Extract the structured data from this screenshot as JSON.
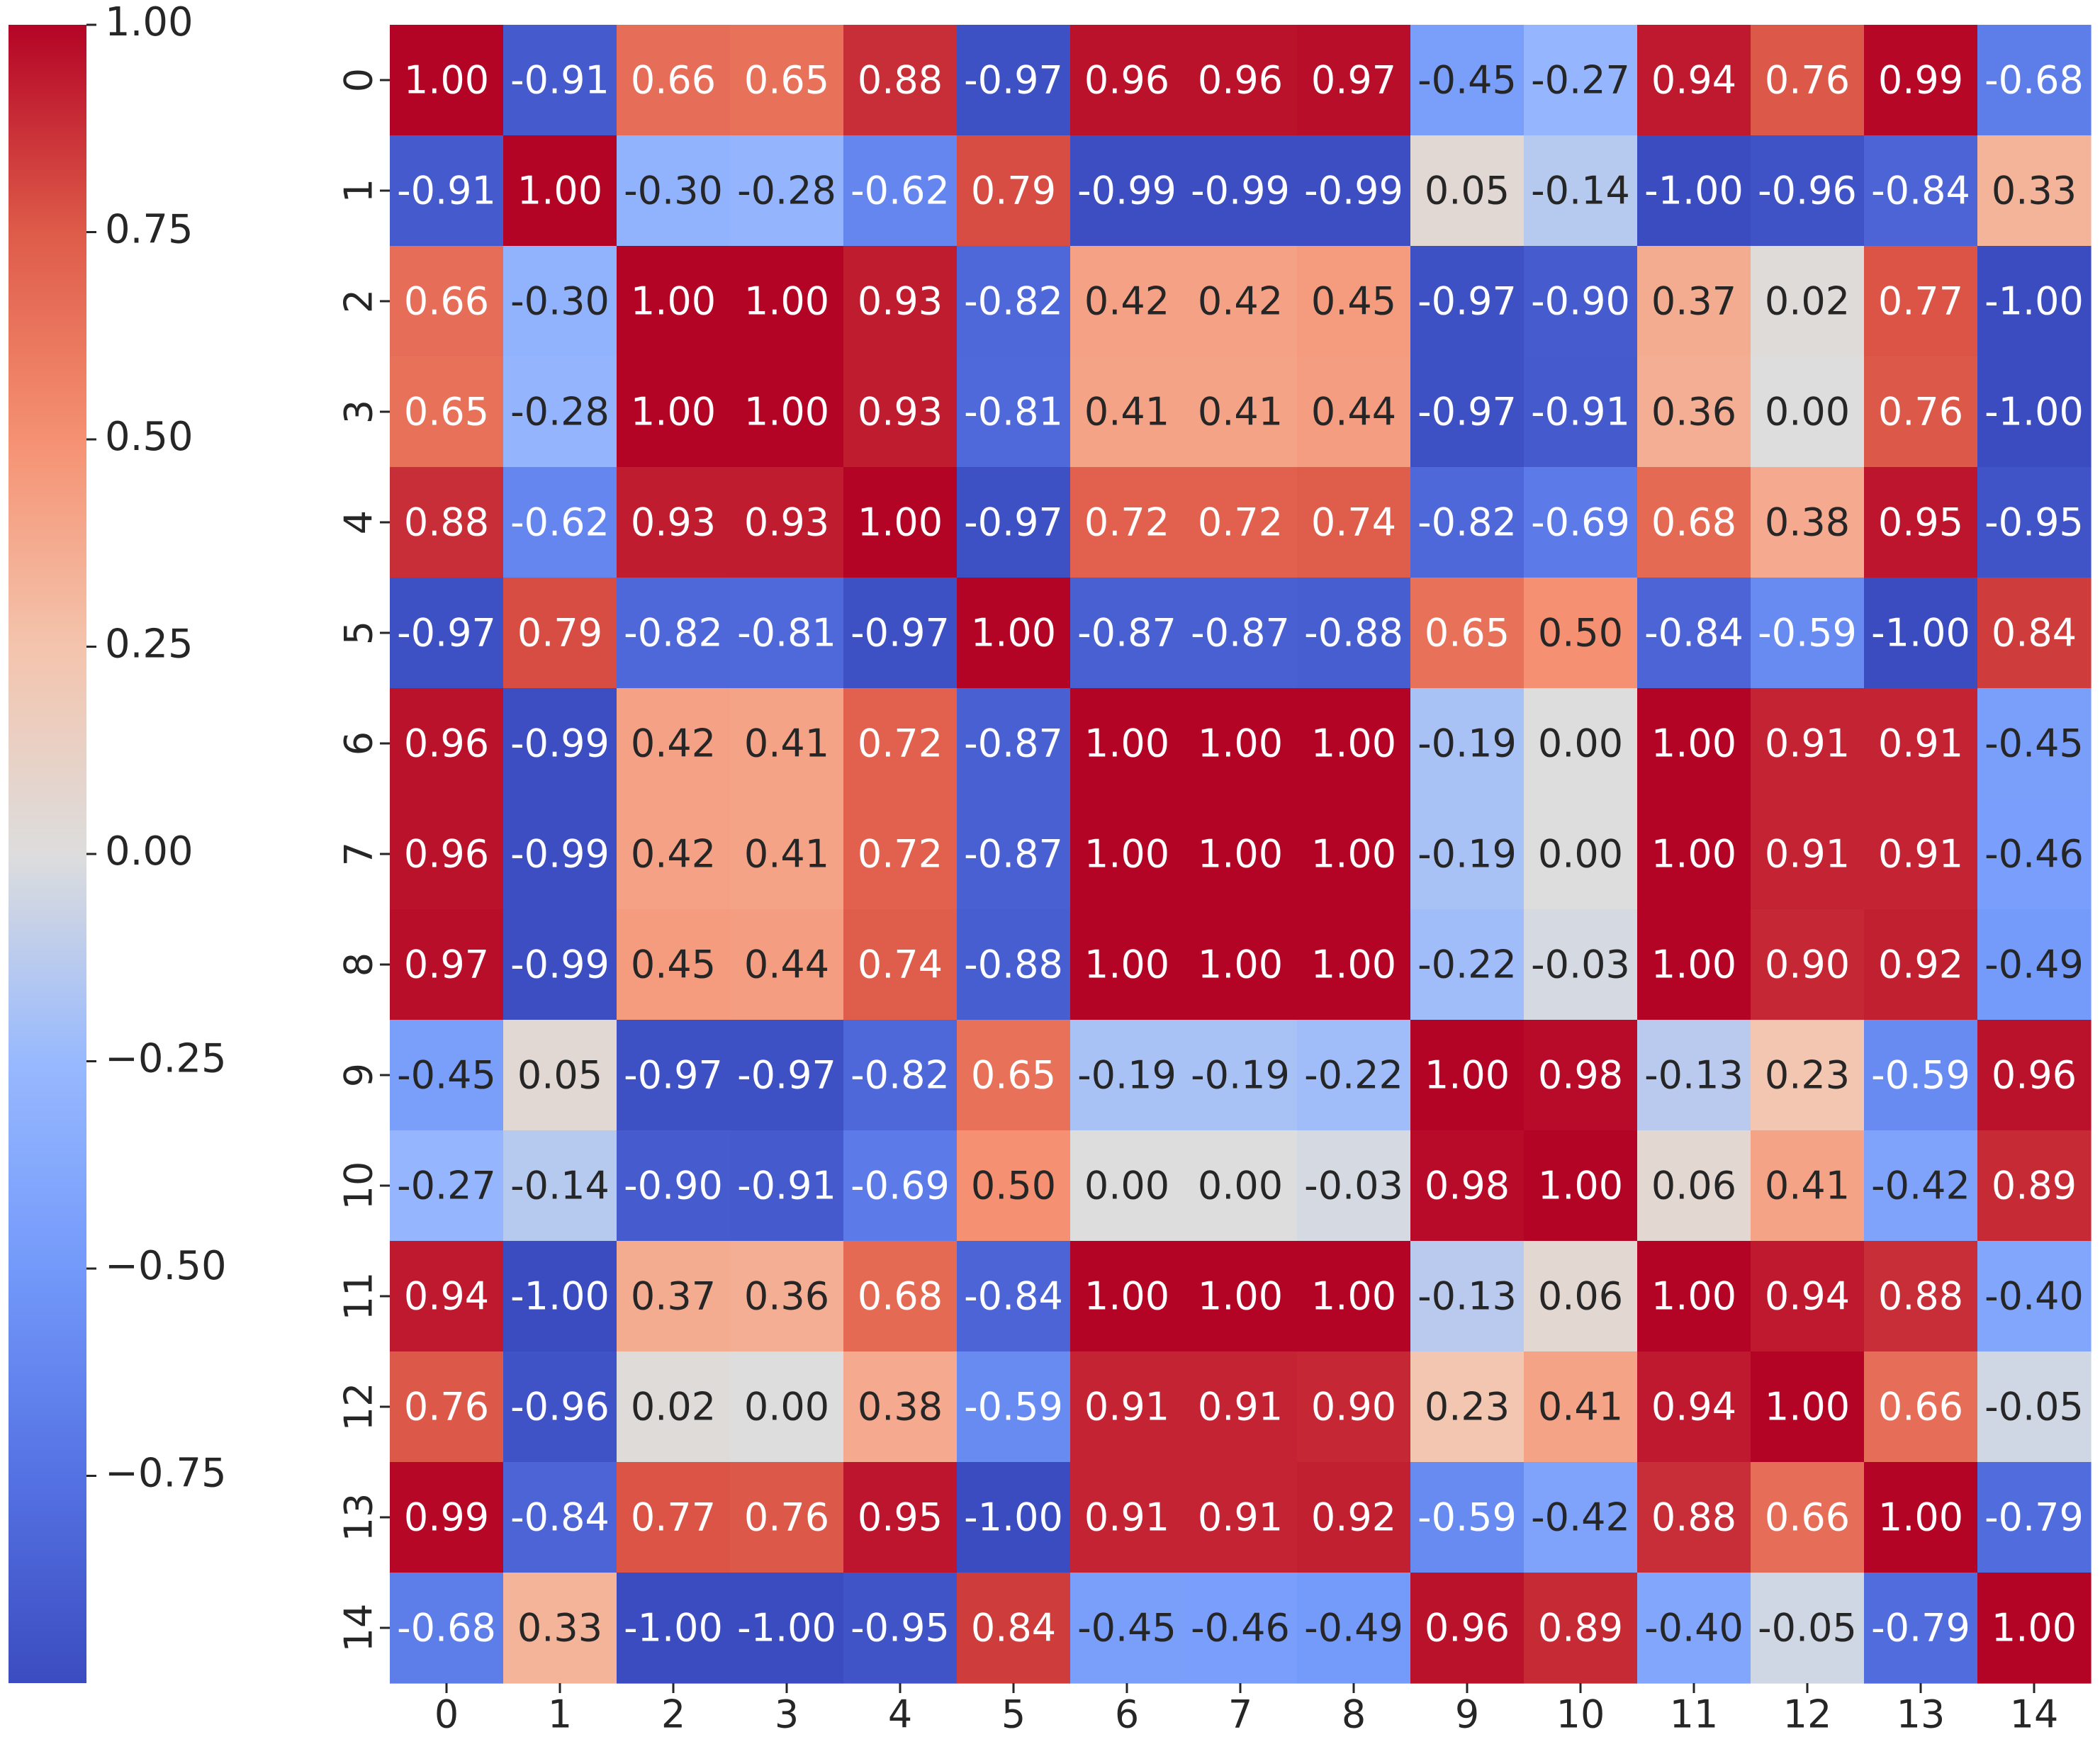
{
  "chart_data": {
    "type": "heatmap",
    "title": "",
    "xlabel": "",
    "ylabel": "",
    "colormap": "coolwarm",
    "vmin": -1.0,
    "vmax": 1.0,
    "x_ticks": [
      "0",
      "1",
      "2",
      "3",
      "4",
      "5",
      "6",
      "7",
      "8",
      "9",
      "10",
      "11",
      "12",
      "13",
      "14"
    ],
    "y_ticks": [
      "0",
      "1",
      "2",
      "3",
      "4",
      "5",
      "6",
      "7",
      "8",
      "9",
      "10",
      "11",
      "12",
      "13",
      "14"
    ],
    "values": [
      [
        1.0,
        -0.91,
        0.66,
        0.65,
        0.88,
        -0.97,
        0.96,
        0.96,
        0.97,
        -0.45,
        -0.27,
        0.94,
        0.76,
        0.99,
        -0.68
      ],
      [
        -0.91,
        1.0,
        -0.3,
        -0.28,
        -0.62,
        0.79,
        -0.99,
        -0.99,
        -0.99,
        0.05,
        -0.14,
        -1.0,
        -0.96,
        -0.84,
        0.33
      ],
      [
        0.66,
        -0.3,
        1.0,
        1.0,
        0.93,
        -0.82,
        0.42,
        0.42,
        0.45,
        -0.97,
        -0.9,
        0.37,
        0.02,
        0.77,
        -1.0
      ],
      [
        0.65,
        -0.28,
        1.0,
        1.0,
        0.93,
        -0.81,
        0.41,
        0.41,
        0.44,
        -0.97,
        -0.91,
        0.36,
        0.0,
        0.76,
        -1.0
      ],
      [
        0.88,
        -0.62,
        0.93,
        0.93,
        1.0,
        -0.97,
        0.72,
        0.72,
        0.74,
        -0.82,
        -0.69,
        0.68,
        0.38,
        0.95,
        -0.95
      ],
      [
        -0.97,
        0.79,
        -0.82,
        -0.81,
        -0.97,
        1.0,
        -0.87,
        -0.87,
        -0.88,
        0.65,
        0.5,
        -0.84,
        -0.59,
        -1.0,
        0.84
      ],
      [
        0.96,
        -0.99,
        0.42,
        0.41,
        0.72,
        -0.87,
        1.0,
        1.0,
        1.0,
        -0.19,
        0.0,
        1.0,
        0.91,
        0.91,
        -0.45
      ],
      [
        0.96,
        -0.99,
        0.42,
        0.41,
        0.72,
        -0.87,
        1.0,
        1.0,
        1.0,
        -0.19,
        0.0,
        1.0,
        0.91,
        0.91,
        -0.46
      ],
      [
        0.97,
        -0.99,
        0.45,
        0.44,
        0.74,
        -0.88,
        1.0,
        1.0,
        1.0,
        -0.22,
        -0.03,
        1.0,
        0.9,
        0.92,
        -0.49
      ],
      [
        -0.45,
        0.05,
        -0.97,
        -0.97,
        -0.82,
        0.65,
        -0.19,
        -0.19,
        -0.22,
        1.0,
        0.98,
        -0.13,
        0.23,
        -0.59,
        0.96
      ],
      [
        -0.27,
        -0.14,
        -0.9,
        -0.91,
        -0.69,
        0.5,
        0.0,
        0.0,
        -0.03,
        0.98,
        1.0,
        0.06,
        0.41,
        -0.42,
        0.89
      ],
      [
        0.94,
        -1.0,
        0.37,
        0.36,
        0.68,
        -0.84,
        1.0,
        1.0,
        1.0,
        -0.13,
        0.06,
        1.0,
        0.94,
        0.88,
        -0.4
      ],
      [
        0.76,
        -0.96,
        0.02,
        0.0,
        0.38,
        -0.59,
        0.91,
        0.91,
        0.9,
        0.23,
        0.41,
        0.94,
        1.0,
        0.66,
        -0.05
      ],
      [
        0.99,
        -0.84,
        0.77,
        0.76,
        0.95,
        -1.0,
        0.91,
        0.91,
        0.92,
        -0.59,
        -0.42,
        0.88,
        0.66,
        1.0,
        -0.79
      ],
      [
        -0.68,
        0.33,
        -1.0,
        -1.0,
        -0.95,
        0.84,
        -0.45,
        -0.46,
        -0.49,
        0.96,
        0.89,
        -0.4,
        -0.05,
        -0.79,
        1.0
      ]
    ],
    "colorbar": {
      "position": "left",
      "ticks": [
        1.0,
        0.75,
        0.5,
        0.25,
        0.0,
        -0.25,
        -0.5,
        -0.75
      ],
      "tick_labels": [
        "1.00",
        "0.75",
        "0.50",
        "0.25",
        "0.00",
        "−0.25",
        "−0.50",
        "−0.75"
      ]
    }
  }
}
